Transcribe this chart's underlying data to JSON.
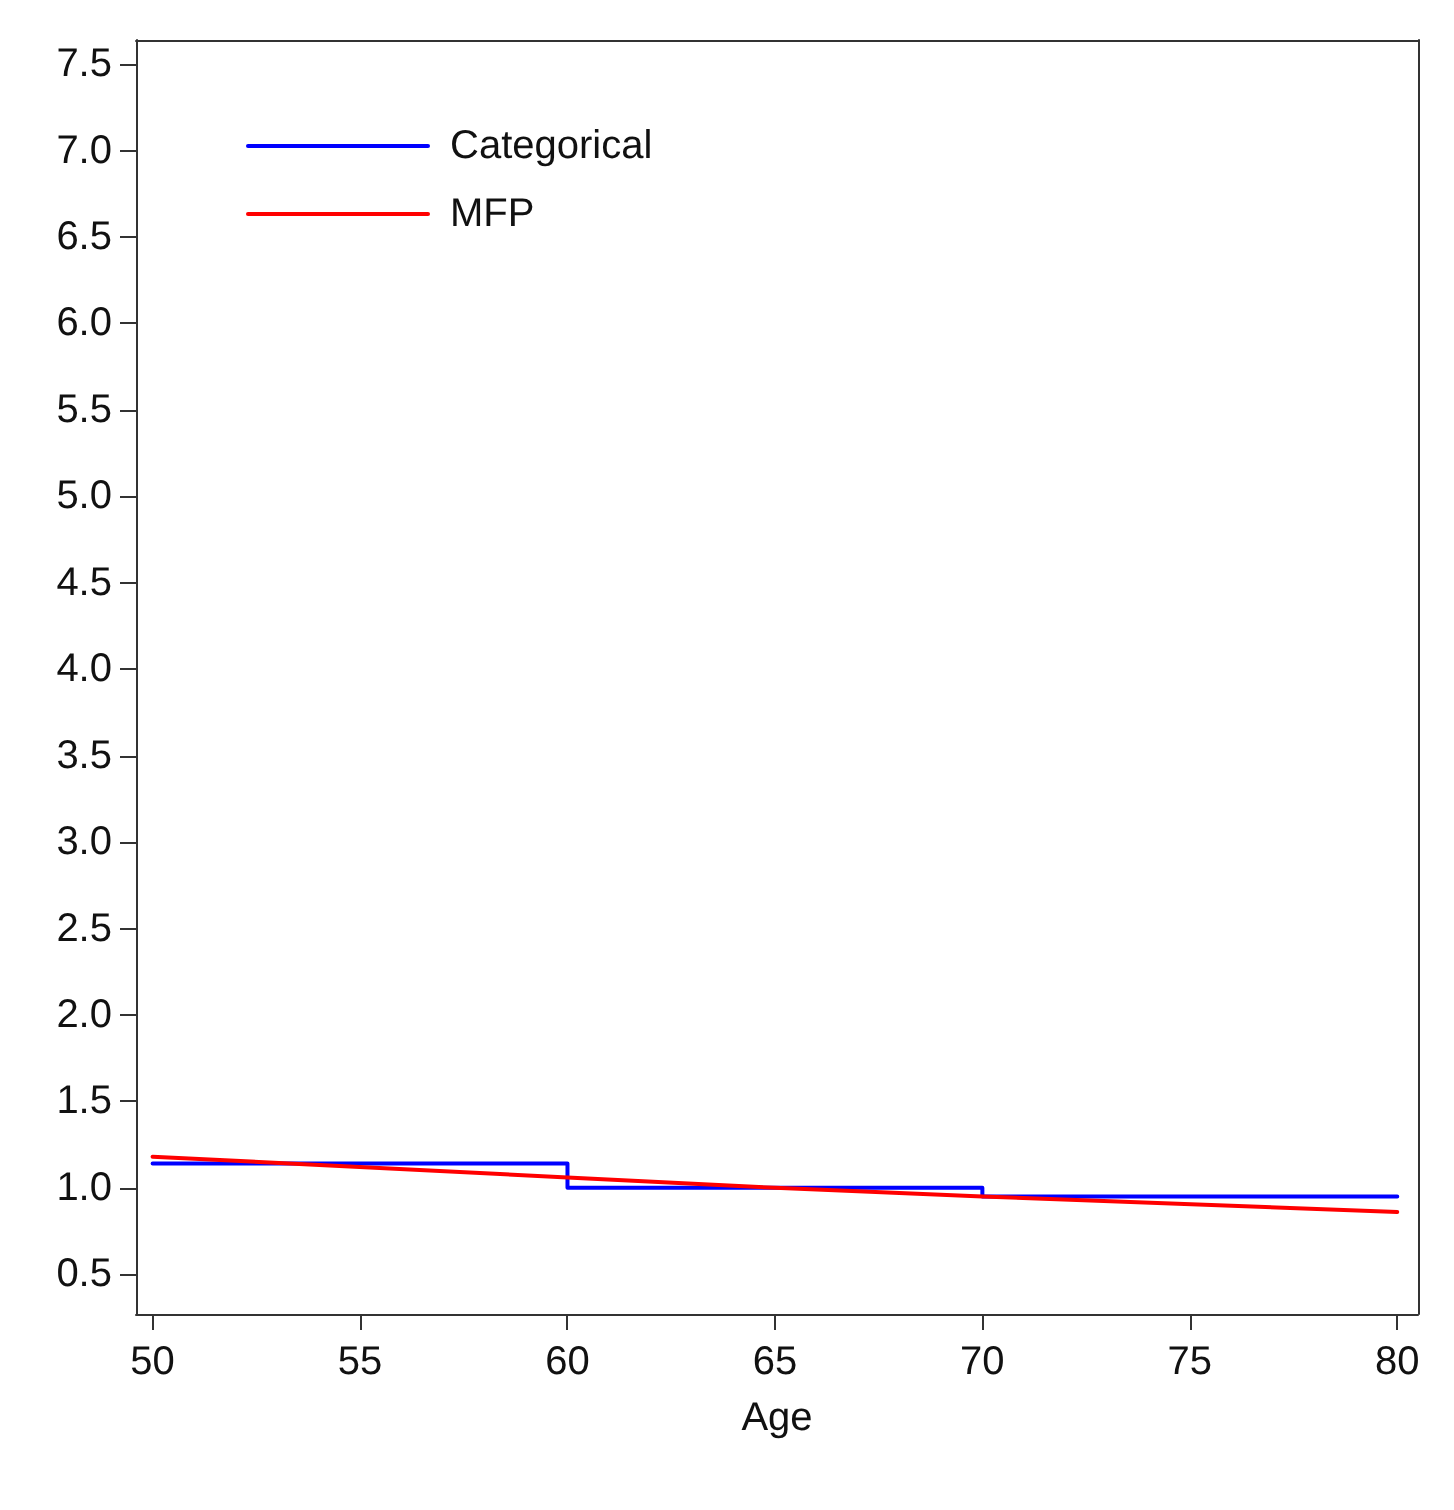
{
  "chart_data": {
    "type": "line",
    "xlabel": "Age",
    "xlim": [
      49.6,
      80.5
    ],
    "xticks": [
      50,
      55,
      60,
      65,
      70,
      75,
      80
    ],
    "ylim": [
      0.27,
      7.64
    ],
    "yticks": [
      {
        "value": 0.5,
        "label": "0.5"
      },
      {
        "value": 1,
        "label": "1.0"
      },
      {
        "value": 1.5,
        "label": "1.5"
      },
      {
        "value": 2,
        "label": "2.0"
      },
      {
        "value": 2.5,
        "label": "2.5"
      },
      {
        "value": 3,
        "label": "3.0"
      },
      {
        "value": 3.5,
        "label": "3.5"
      },
      {
        "value": 4,
        "label": "4.0"
      },
      {
        "value": 4.5,
        "label": "4.5"
      },
      {
        "value": 5,
        "label": "5.0"
      },
      {
        "value": 5.5,
        "label": "5.5"
      },
      {
        "value": 6,
        "label": "6.0"
      },
      {
        "value": 6.5,
        "label": "6.5"
      },
      {
        "value": 7,
        "label": "7.0"
      },
      {
        "value": 7.5,
        "label": "7.5"
      }
    ],
    "grid": false,
    "legend": "top left",
    "marker": "none",
    "line_style": "solid",
    "series": [
      {
        "name": "Categorical",
        "type": "step",
        "color": "#0000ff",
        "x": [
          50,
          60,
          70,
          80
        ],
        "values": [
          1.14,
          1.0,
          0.95,
          0.95
        ]
      },
      {
        "name": "MFP",
        "color": "#ff0000",
        "x": [
          50,
          60,
          65,
          70,
          80
        ],
        "values": [
          1.18,
          1.06,
          1.0,
          0.95,
          0.86
        ]
      }
    ]
  }
}
